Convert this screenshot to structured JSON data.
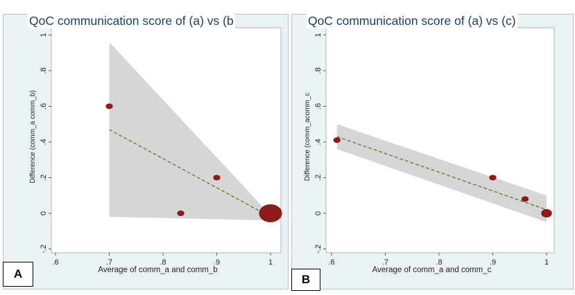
{
  "figure": {
    "panel_a_label": "A",
    "panel_b_label": "B"
  },
  "chart_data": [
    {
      "type": "scatter",
      "id": "a",
      "title": "QoC communication score of (a) vs (b",
      "xlabel": "Average of comm_a and comm_b",
      "ylabel": "Difference (comm_a comm_b)",
      "xlim": [
        0.6,
        1.0
      ],
      "ylim": [
        -0.2,
        1.0
      ],
      "x_ticks": [
        ".6",
        ".7",
        ".8",
        ".9",
        "1"
      ],
      "x_tick_values": [
        0.6,
        0.7,
        0.8,
        0.9,
        1.0
      ],
      "y_ticks": [
        "-.2",
        "0",
        ".2",
        ".4",
        ".6",
        ".8",
        "1"
      ],
      "y_tick_values": [
        -0.2,
        0,
        0.2,
        0.4,
        0.6,
        0.8,
        1.0
      ],
      "points": [
        {
          "x": 0.7,
          "y": 0.6,
          "size": 1
        },
        {
          "x": 0.833,
          "y": 0.0,
          "size": 1
        },
        {
          "x": 0.9,
          "y": 0.2,
          "size": 1
        },
        {
          "x": 1.0,
          "y": 0.0,
          "size": 3.2
        }
      ],
      "fit_line": {
        "x": [
          0.7,
          1.0
        ],
        "y": [
          0.47,
          -0.02
        ]
      },
      "ci_band": {
        "x": [
          0.7,
          1.0
        ],
        "upper": [
          0.96,
          -0.01
        ],
        "lower": [
          -0.02,
          -0.04
        ]
      },
      "colors": {
        "point": "#8b1a1a",
        "fit": "#5a7a2a",
        "band": "#d4d4d4",
        "plot_bg": "#ffffff"
      }
    },
    {
      "type": "scatter",
      "id": "b",
      "title": "QoC communication score of (a) vs (c)",
      "xlabel": "Average of comm_a and comm_c",
      "ylabel": "Difference (comm_acomm_c",
      "xlim": [
        0.6,
        1.0
      ],
      "ylim": [
        -0.2,
        1.0
      ],
      "x_ticks": [
        ".6",
        ".7",
        ".8",
        ".9",
        "1"
      ],
      "x_tick_values": [
        0.6,
        0.7,
        0.8,
        0.9,
        1.0
      ],
      "y_ticks": [
        "-.2",
        "0",
        ".2",
        ".4",
        ".6",
        ".8",
        "1"
      ],
      "y_tick_values": [
        -0.2,
        0,
        0.2,
        0.4,
        0.6,
        0.8,
        1.0
      ],
      "points": [
        {
          "x": 0.61,
          "y": 0.41,
          "size": 1
        },
        {
          "x": 0.9,
          "y": 0.2,
          "size": 1
        },
        {
          "x": 0.96,
          "y": 0.08,
          "size": 1
        },
        {
          "x": 1.0,
          "y": 0.0,
          "size": 1.5
        }
      ],
      "fit_line": {
        "x": [
          0.61,
          1.0
        ],
        "y": [
          0.43,
          0.02
        ]
      },
      "ci_band": {
        "x": [
          0.61,
          1.0
        ],
        "upper": [
          0.5,
          0.1
        ],
        "lower": [
          0.36,
          -0.05
        ]
      },
      "colors": {
        "point": "#8b1a1a",
        "fit": "#5a7a2a",
        "band": "#d4d4d4",
        "plot_bg": "#ffffff"
      }
    }
  ]
}
